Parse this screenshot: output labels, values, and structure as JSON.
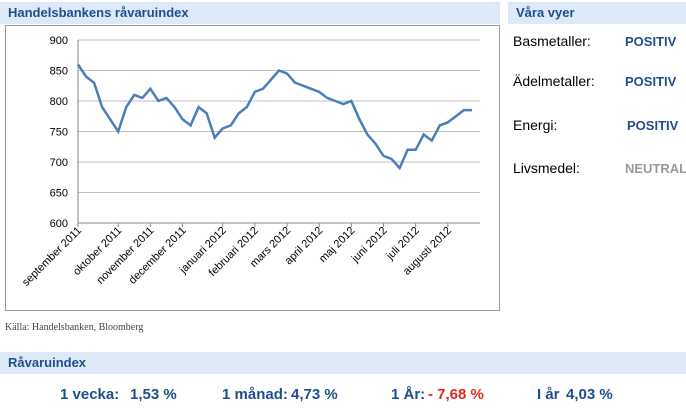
{
  "chart_data": {
    "type": "line",
    "title": "Handelsbankens råvaruindex",
    "x": [
      0,
      1,
      2,
      3,
      4,
      5,
      6,
      7,
      8,
      9,
      10,
      11,
      12,
      13,
      14,
      15,
      16,
      17,
      18,
      19,
      20,
      21,
      22,
      23,
      24,
      25,
      26,
      27,
      28,
      29,
      30,
      31,
      32,
      33,
      34,
      35,
      36,
      37,
      38,
      39,
      40,
      41,
      42,
      43,
      44,
      45,
      46,
      47,
      48,
      49
    ],
    "series": [
      {
        "name": "Handelsbankens råvaruindex",
        "color": "#4a7ebb",
        "values": [
          860,
          840,
          830,
          790,
          770,
          750,
          790,
          810,
          805,
          820,
          800,
          805,
          790,
          770,
          760,
          790,
          780,
          740,
          755,
          760,
          780,
          790,
          815,
          820,
          835,
          850,
          845,
          830,
          825,
          820,
          815,
          805,
          800,
          795,
          800,
          770,
          745,
          730,
          710,
          705,
          690,
          720,
          720,
          745,
          735,
          760,
          765,
          775,
          785,
          785
        ]
      }
    ],
    "xlim": [
      0,
      50
    ],
    "xticks": [
      {
        "value": 0,
        "label": "september 2011"
      },
      {
        "value": 5,
        "label": "oktober 2011"
      },
      {
        "value": 9,
        "label": "november 2011"
      },
      {
        "value": 13,
        "label": "december 2011"
      },
      {
        "value": 18,
        "label": "januari 2012"
      },
      {
        "value": 22,
        "label": "februari 2012"
      },
      {
        "value": 26,
        "label": "mars 2012"
      },
      {
        "value": 30,
        "label": "april 2012"
      },
      {
        "value": 34,
        "label": "maj 2012"
      },
      {
        "value": 38,
        "label": "juni 2012"
      },
      {
        "value": 42,
        "label": "juli 2012"
      },
      {
        "value": 46,
        "label": "augusti 2012"
      }
    ],
    "ylim": [
      600,
      900
    ],
    "yticks": [
      600,
      650,
      700,
      750,
      800,
      850,
      900
    ],
    "grid": true,
    "source": "Källa: Handelsbanken, Bloomberg"
  },
  "views": {
    "title": "Våra vyer",
    "rows": [
      [
        "Basmetaller:",
        "POSITIV"
      ],
      [
        "Ädelmetaller:",
        "POSITIV"
      ],
      [
        "Energi:",
        "POSITIV"
      ],
      [
        "Livsmedel:",
        "NEUTRAL"
      ]
    ]
  },
  "index": {
    "title": "Råvaruindex",
    "stats": [
      [
        "1 vecka:",
        "1,53 %"
      ],
      [
        "1 månad:",
        "4,73 %"
      ],
      [
        "1 År:",
        "- 7,68 %"
      ],
      [
        "I år",
        "4,03 %"
      ]
    ]
  }
}
